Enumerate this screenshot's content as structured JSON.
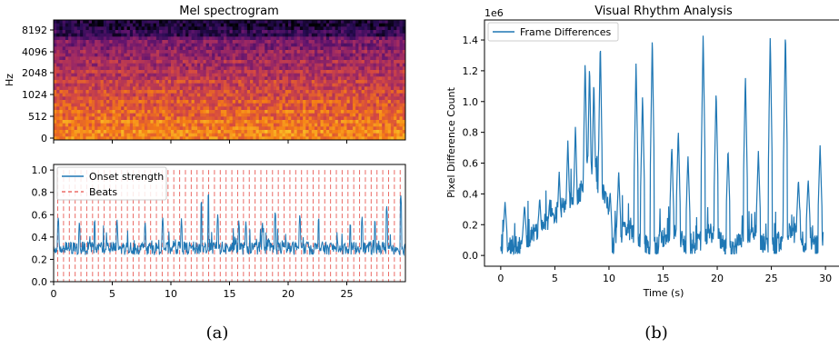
{
  "captions": {
    "left": "(a)",
    "right": "(b)"
  },
  "chart_data": [
    {
      "type": "heatmap",
      "title": "Mel spectrogram",
      "ylabel": "Hz",
      "y_ticks": [
        "0",
        "512",
        "1024",
        "2048",
        "4096",
        "8192"
      ],
      "x_range": [
        0,
        30
      ],
      "colormap": "magma",
      "rows": 36,
      "cols": 120
    },
    {
      "type": "line",
      "xlabel": "",
      "ylabel": "",
      "xlim": [
        0,
        30
      ],
      "ylim": [
        0,
        1.05
      ],
      "x_ticks": [
        0,
        5,
        10,
        15,
        20,
        25
      ],
      "y_ticks": [
        "0.0",
        "0.2",
        "0.4",
        "0.6",
        "0.8",
        "1.0"
      ],
      "legend_position": "top-left",
      "series": [
        {
          "name": "Onset strength",
          "color": "#1f77b4",
          "baseline": 0.3,
          "spike_times": [
            0.4,
            2.2,
            3.5,
            5.4,
            7.8,
            9.3,
            10.9,
            12.6,
            13.2,
            14.0,
            15.8,
            16.4,
            17.8,
            18.9,
            21.0,
            22.6,
            25.3,
            26.3,
            27.4,
            28.4,
            29.6
          ],
          "spike_values": [
            0.6,
            0.55,
            0.58,
            0.57,
            0.55,
            0.6,
            0.57,
            0.75,
            0.82,
            0.62,
            0.56,
            0.55,
            0.55,
            0.65,
            0.62,
            0.6,
            0.55,
            0.6,
            0.58,
            0.7,
            0.8
          ]
        },
        {
          "name": "Beats",
          "color": "#e8504a",
          "style": "dashed",
          "beat_start": 0.35,
          "beat_interval": 0.495,
          "beat_end": 29.8
        }
      ]
    },
    {
      "type": "line",
      "title": "Visual Rhythm Analysis",
      "xlabel": "Time (s)",
      "ylabel": "Pixel Difference Count",
      "offset_label": "1e6",
      "xlim": [
        -1.5,
        31.5
      ],
      "ylim": [
        -0.07,
        1.53
      ],
      "x_ticks": [
        0,
        5,
        10,
        15,
        20,
        25,
        30
      ],
      "y_ticks": [
        "0.0",
        "0.2",
        "0.4",
        "0.6",
        "0.8",
        "1.0",
        "1.2",
        "1.4"
      ],
      "legend_position": "top-left",
      "series": [
        {
          "name": "Frame Differences",
          "color": "#1f77b4",
          "peaks": [
            [
              0.4,
              0.35
            ],
            [
              2.2,
              0.33
            ],
            [
              3.6,
              0.38
            ],
            [
              4.5,
              0.35
            ],
            [
              5.4,
              0.55
            ],
            [
              6.2,
              0.75
            ],
            [
              6.9,
              0.85
            ],
            [
              7.8,
              1.28
            ],
            [
              8.2,
              1.25
            ],
            [
              8.6,
              1.15
            ],
            [
              9.2,
              1.4
            ],
            [
              10.1,
              0.42
            ],
            [
              10.9,
              0.55
            ],
            [
              12.5,
              1.26
            ],
            [
              13.1,
              1.05
            ],
            [
              14.0,
              1.44
            ],
            [
              15.8,
              0.72
            ],
            [
              16.4,
              0.82
            ],
            [
              17.3,
              0.65
            ],
            [
              18.7,
              1.45
            ],
            [
              19.9,
              1.08
            ],
            [
              21.0,
              0.7
            ],
            [
              22.6,
              1.18
            ],
            [
              23.8,
              0.68
            ],
            [
              24.9,
              1.44
            ],
            [
              26.3,
              1.47
            ],
            [
              27.5,
              0.5
            ],
            [
              28.4,
              0.5
            ],
            [
              29.5,
              0.72
            ]
          ]
        }
      ]
    }
  ]
}
